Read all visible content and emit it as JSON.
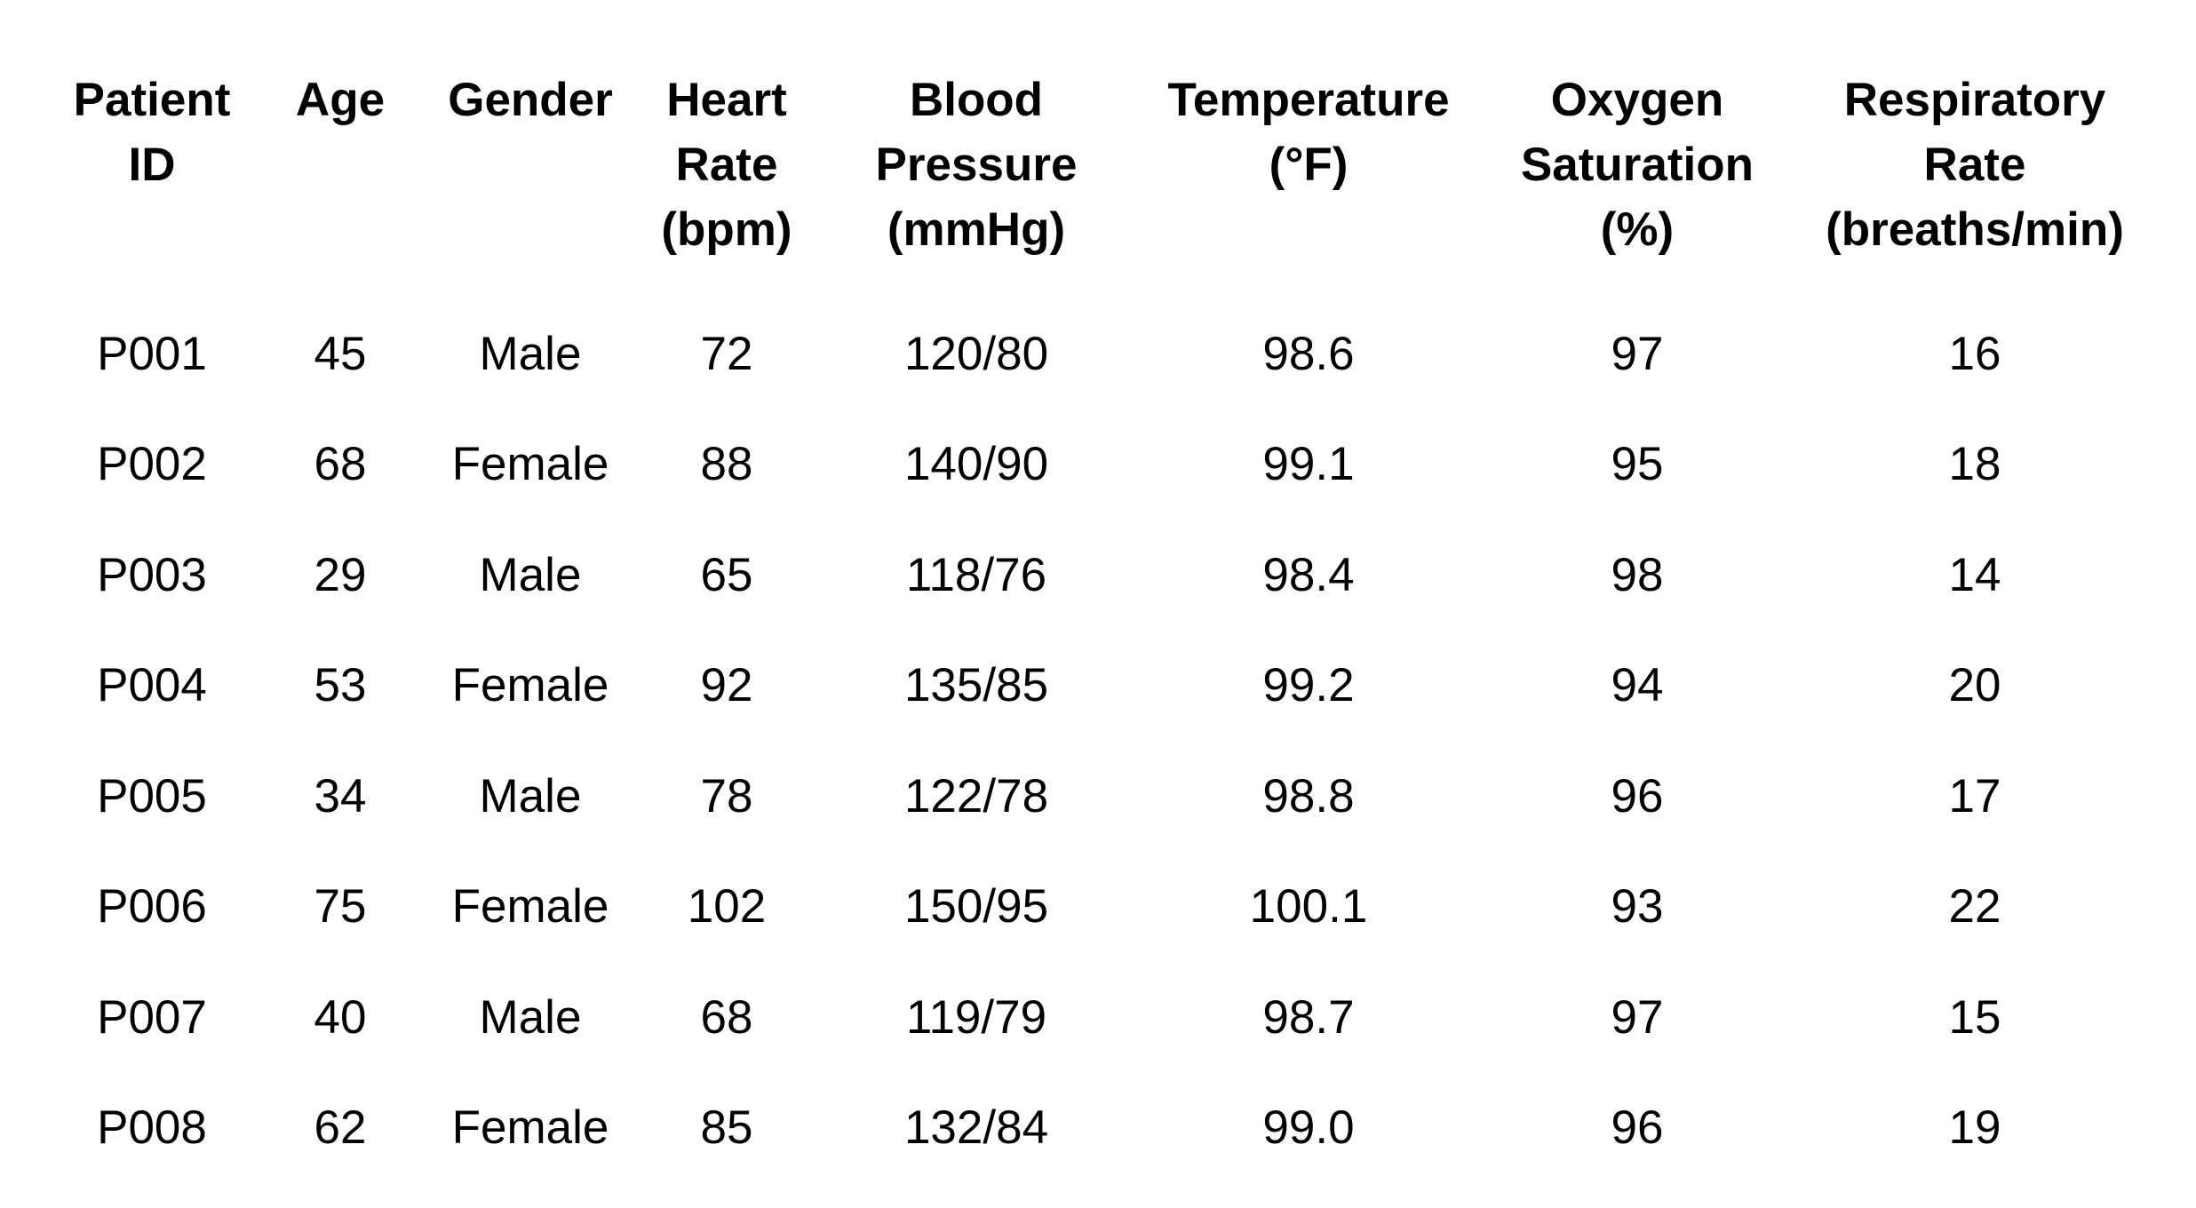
{
  "table": {
    "headers": [
      [
        "Patient",
        "ID"
      ],
      [
        "Age"
      ],
      [
        "Gender"
      ],
      [
        "Heart",
        "Rate",
        "(bpm)"
      ],
      [
        "Blood",
        "Pressure",
        "(mmHg)"
      ],
      [
        "Temperature",
        "(°F)"
      ],
      [
        "Oxygen",
        "Saturation",
        "(%)"
      ],
      [
        "Respiratory",
        "Rate",
        "(breaths/min)"
      ]
    ],
    "rows": [
      [
        "P001",
        "45",
        "Male",
        "72",
        "120/80",
        "98.6",
        "97",
        "16"
      ],
      [
        "P002",
        "68",
        "Female",
        "88",
        "140/90",
        "99.1",
        "95",
        "18"
      ],
      [
        "P003",
        "29",
        "Male",
        "65",
        "118/76",
        "98.4",
        "98",
        "14"
      ],
      [
        "P004",
        "53",
        "Female",
        "92",
        "135/85",
        "99.2",
        "94",
        "20"
      ],
      [
        "P005",
        "34",
        "Male",
        "78",
        "122/78",
        "98.8",
        "96",
        "17"
      ],
      [
        "P006",
        "75",
        "Female",
        "102",
        "150/95",
        "100.1",
        "93",
        "22"
      ],
      [
        "P007",
        "40",
        "Male",
        "68",
        "119/79",
        "98.7",
        "97",
        "15"
      ],
      [
        "P008",
        "62",
        "Female",
        "85",
        "132/84",
        "99.0",
        "96",
        "19"
      ]
    ]
  }
}
